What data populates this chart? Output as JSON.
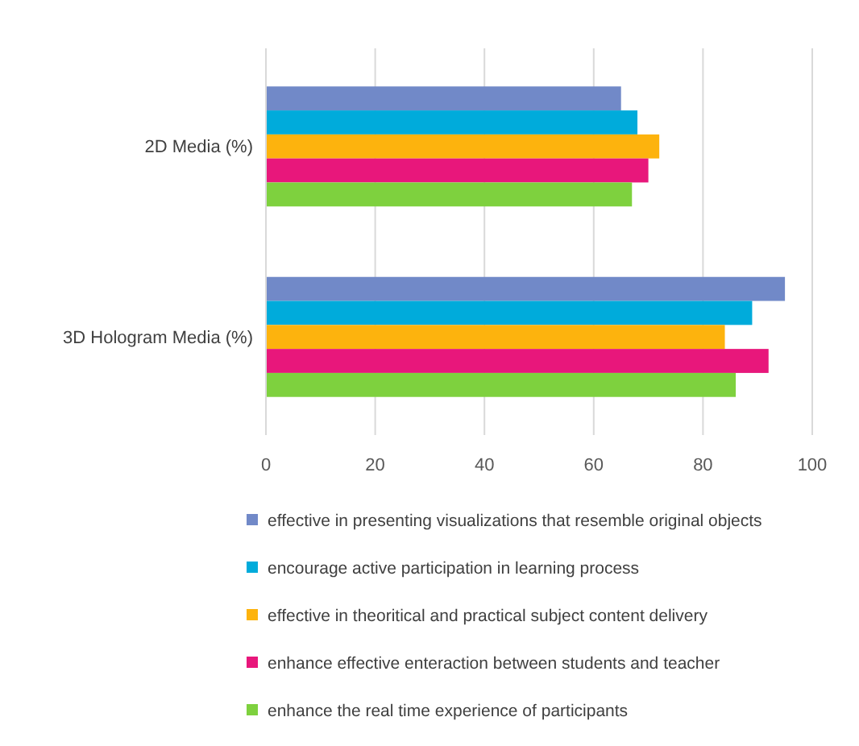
{
  "chart_data": {
    "type": "bar",
    "orientation": "horizontal",
    "categories": [
      "2D Media (%)",
      "3D Hologram Media (%)"
    ],
    "series": [
      {
        "name": "effective in presenting visualizations that resemble original objects",
        "color": "#7189c8",
        "values": [
          65,
          95
        ]
      },
      {
        "name": "encourage active participation in learning process",
        "color": "#00abdb",
        "values": [
          68,
          89
        ]
      },
      {
        "name": "effective in theoritical and practical subject content delivery",
        "color": "#fdb30d",
        "values": [
          72,
          84
        ]
      },
      {
        "name": "enhance effective enteraction between students and teacher",
        "color": "#e8177b",
        "values": [
          70,
          92
        ]
      },
      {
        "name": "enhance the real time experience of participants",
        "color": "#7ed13e",
        "values": [
          67,
          86
        ]
      }
    ],
    "xlim": [
      0,
      100
    ],
    "xticks": [
      0,
      20,
      40,
      60,
      80,
      100
    ],
    "grid": "x",
    "legend": "bottom"
  }
}
